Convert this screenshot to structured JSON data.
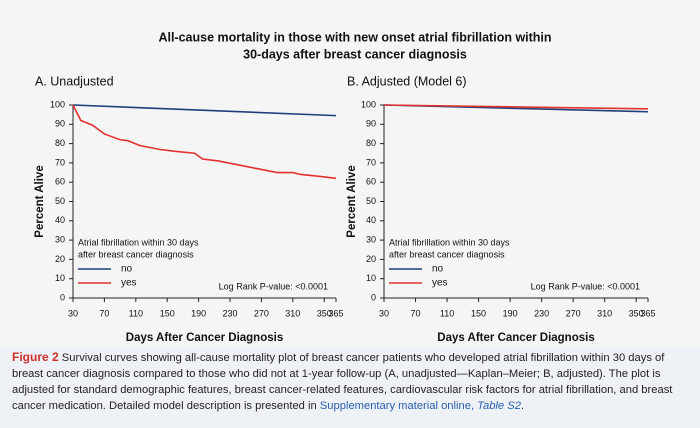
{
  "figure": {
    "title_lines": [
      "All-cause mortality in those with new onset atrial fibrillation within",
      "30-days after breast cancer diagnosis"
    ],
    "caption": {
      "label": "Figure 2",
      "text": "Survival curves showing all-cause mortality plot of breast cancer patients who developed atrial fibrillation within 30 days of breast cancer diagnosis compared to those who did not at 1-year follow-up (A, unadjusted—Kaplan–Meier; B, adjusted). The plot is adjusted for standard demographic features, breast cancer-related features, cardiovascular risk factors for atrial fibrillation, and breast cancer medication. Detailed model description is presented in",
      "link": "Supplementary material online,",
      "link_italic": "Table S2",
      "end": "."
    }
  },
  "chart_data": [
    {
      "type": "line",
      "title": "A. Unadjusted",
      "xlabel": "Days After Cancer Diagnosis",
      "ylabel": "Percent Alive",
      "legend_title": [
        "Atrial fibrillation within 30 days",
        "after breast cancer diagnosis"
      ],
      "annotation": "Log Rank P-value: <0.0001",
      "xlim": [
        30,
        365
      ],
      "xticks": [
        30,
        70,
        110,
        150,
        190,
        230,
        270,
        310,
        350,
        365
      ],
      "ylim": [
        0,
        100
      ],
      "yticks": [
        0,
        10,
        20,
        30,
        40,
        50,
        60,
        70,
        80,
        90,
        100
      ],
      "series": [
        {
          "name": "no",
          "color": "#1f3f7a",
          "x": [
            30,
            365
          ],
          "values": [
            100,
            94.5
          ]
        },
        {
          "name": "yes",
          "color": "#e0332f",
          "x": [
            30,
            35,
            40,
            55,
            70,
            90,
            100,
            115,
            140,
            160,
            185,
            195,
            215,
            240,
            265,
            290,
            310,
            320,
            345,
            365
          ],
          "values": [
            100,
            96,
            92,
            89.5,
            85,
            82,
            81.5,
            79,
            77,
            76,
            75,
            72,
            71,
            69,
            67,
            65,
            65,
            64,
            63,
            62
          ]
        }
      ]
    },
    {
      "type": "line",
      "title": "B. Adjusted (Model 6)",
      "xlabel": "Days After Cancer Diagnosis",
      "ylabel": "Percent Alive",
      "legend_title": [
        "Atrial fibrillation within 30 days",
        "after breast cancer diagnosis"
      ],
      "annotation": "Log Rank P-value: <0.0001",
      "xlim": [
        30,
        365
      ],
      "xticks": [
        30,
        70,
        110,
        150,
        190,
        230,
        270,
        310,
        350,
        365
      ],
      "ylim": [
        0,
        100
      ],
      "yticks": [
        0,
        10,
        20,
        30,
        40,
        50,
        60,
        70,
        80,
        90,
        100
      ],
      "series": [
        {
          "name": "no",
          "color": "#1f3f7a",
          "x": [
            30,
            365
          ],
          "values": [
            100,
            96.5
          ]
        },
        {
          "name": "yes",
          "color": "#e0332f",
          "x": [
            30,
            365
          ],
          "values": [
            100,
            98
          ]
        }
      ]
    }
  ]
}
